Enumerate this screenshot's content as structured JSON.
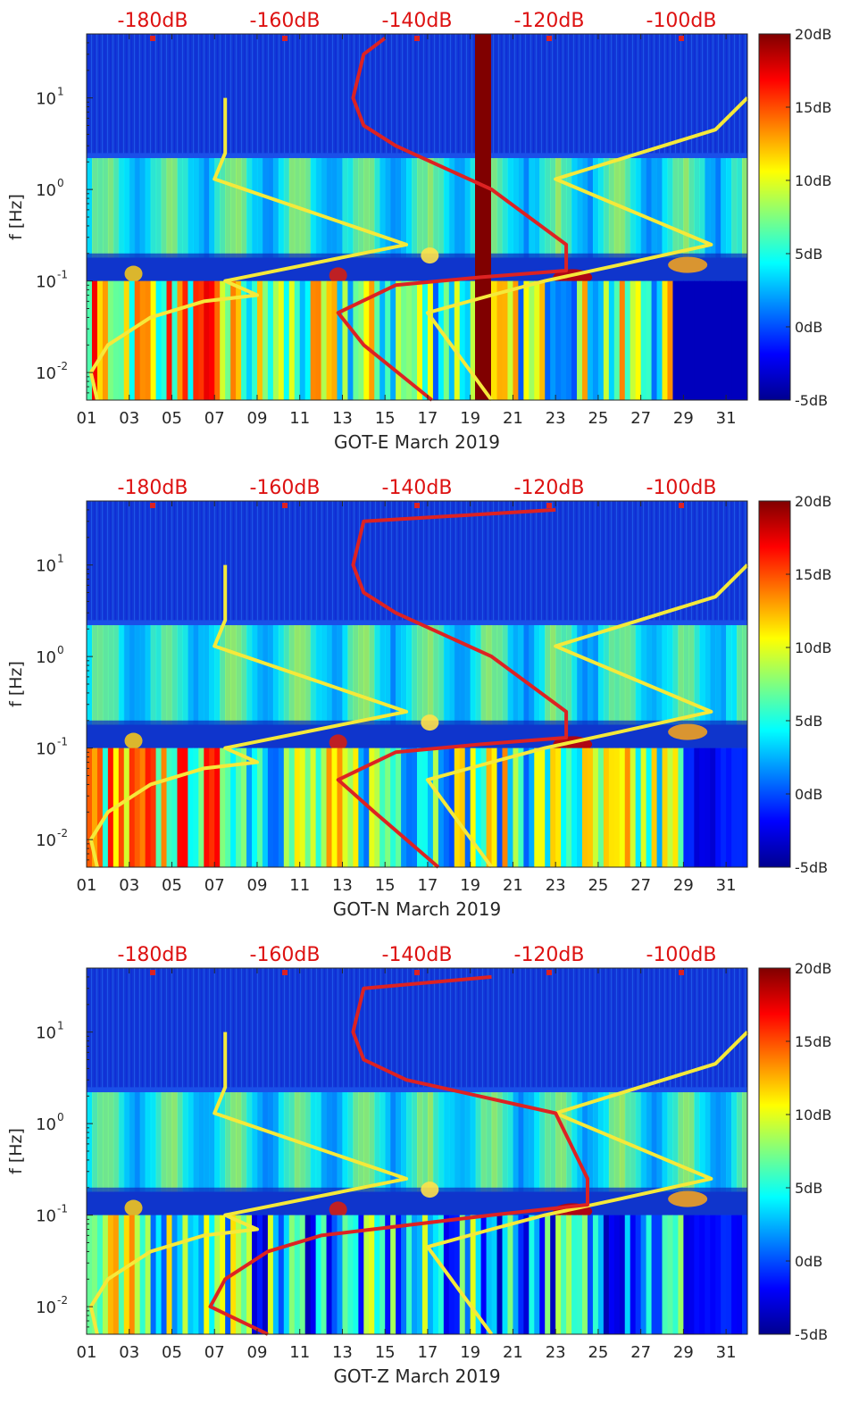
{
  "chart_data": [
    {
      "type": "heatmap",
      "xlabel": "GOT-E March 2019",
      "ylabel": "f [Hz]",
      "x_ticks": [
        "01",
        "03",
        "05",
        "07",
        "09",
        "11",
        "13",
        "15",
        "17",
        "19",
        "21",
        "23",
        "25",
        "27",
        "29",
        "31"
      ],
      "xlim": [
        1,
        32
      ],
      "y_scale": "log",
      "ylim": [
        0.005,
        50
      ],
      "y_ticks": [
        {
          "label": "10",
          "exp": "-2",
          "value": 0.01
        },
        {
          "label": "10",
          "exp": "-1",
          "value": 0.1
        },
        {
          "label": "10",
          "exp": "0",
          "value": 1
        },
        {
          "label": "10",
          "exp": "1",
          "value": 10
        }
      ],
      "top_axis_labels": [
        "-180dB",
        "-160dB",
        "-140dB",
        "-120dB",
        "-100dB"
      ],
      "top_axis_range": [
        -190,
        -90
      ],
      "colorbar": {
        "labels": [
          "20dB",
          "15dB",
          "10dB",
          "5dB",
          "0dB",
          "-5dB"
        ],
        "range": [
          -5,
          20
        ]
      },
      "series": [
        {
          "color": "#f5e93a",
          "points": [
            [
              0.005,
              1.5
            ],
            [
              0.01,
              1.2
            ],
            [
              0.02,
              2.0
            ],
            [
              0.04,
              4.0
            ],
            [
              0.06,
              6.5
            ],
            [
              0.07,
              9.0
            ],
            [
              0.1,
              7.5
            ],
            [
              0.25,
              16
            ],
            [
              1.3,
              7.0
            ],
            [
              2.5,
              7.5
            ],
            [
              10,
              7.5
            ]
          ]
        },
        {
          "color": "#f5e93a",
          "points": [
            [
              0.005,
              20
            ],
            [
              0.045,
              17
            ],
            [
              0.07,
              20
            ],
            [
              0.1,
              22.5
            ],
            [
              0.15,
              26
            ],
            [
              0.25,
              30.3
            ],
            [
              1.3,
              23
            ],
            [
              4.5,
              30.5
            ],
            [
              10,
              32
            ]
          ]
        },
        {
          "color": "#dd2222",
          "points": [
            [
              0.005,
              17.2
            ],
            [
              0.02,
              14
            ],
            [
              0.045,
              12.8
            ],
            [
              0.09,
              15.5
            ],
            [
              0.11,
              19.5
            ],
            [
              0.13,
              23.5
            ],
            [
              0.25,
              23.5
            ],
            [
              1,
              20
            ],
            [
              3,
              15.5
            ],
            [
              5,
              14
            ],
            [
              10,
              13.5
            ],
            [
              30,
              14
            ],
            [
              45,
              15
            ]
          ]
        }
      ],
      "bands": [
        {
          "x": 19.6,
          "color": "#800000"
        }
      ]
    },
    {
      "type": "heatmap",
      "xlabel": "GOT-N March 2019",
      "ylabel": "f [Hz]",
      "x_ticks": [
        "01",
        "03",
        "05",
        "07",
        "09",
        "11",
        "13",
        "15",
        "17",
        "19",
        "21",
        "23",
        "25",
        "27",
        "29",
        "31"
      ],
      "xlim": [
        1,
        32
      ],
      "y_scale": "log",
      "ylim": [
        0.005,
        50
      ],
      "y_ticks": [
        {
          "label": "10",
          "exp": "-2",
          "value": 0.01
        },
        {
          "label": "10",
          "exp": "-1",
          "value": 0.1
        },
        {
          "label": "10",
          "exp": "0",
          "value": 1
        },
        {
          "label": "10",
          "exp": "1",
          "value": 10
        }
      ],
      "top_axis_labels": [
        "-180dB",
        "-160dB",
        "-140dB",
        "-120dB",
        "-100dB"
      ],
      "top_axis_range": [
        -190,
        -90
      ],
      "colorbar": {
        "labels": [
          "20dB",
          "15dB",
          "10dB",
          "5dB",
          "0dB",
          "-5dB"
        ],
        "range": [
          -5,
          20
        ]
      },
      "series": [
        {
          "color": "#f5e93a",
          "points": [
            [
              0.005,
              1.5
            ],
            [
              0.01,
              1.2
            ],
            [
              0.02,
              2.0
            ],
            [
              0.04,
              4.0
            ],
            [
              0.06,
              6.5
            ],
            [
              0.07,
              9.0
            ],
            [
              0.1,
              7.5
            ],
            [
              0.25,
              16
            ],
            [
              1.3,
              7.0
            ],
            [
              2.5,
              7.5
            ],
            [
              10,
              7.5
            ]
          ]
        },
        {
          "color": "#f5e93a",
          "points": [
            [
              0.005,
              20
            ],
            [
              0.045,
              17
            ],
            [
              0.07,
              20
            ],
            [
              0.1,
              22.5
            ],
            [
              0.15,
              26
            ],
            [
              0.25,
              30.3
            ],
            [
              1.3,
              23
            ],
            [
              4.5,
              30.5
            ],
            [
              10,
              32
            ]
          ]
        },
        {
          "color": "#dd2222",
          "points": [
            [
              0.005,
              17.5
            ],
            [
              0.02,
              14.5
            ],
            [
              0.045,
              12.8
            ],
            [
              0.09,
              15.5
            ],
            [
              0.11,
              19.5
            ],
            [
              0.13,
              23.5
            ],
            [
              0.25,
              23.5
            ],
            [
              1,
              20
            ],
            [
              3,
              15.5
            ],
            [
              5,
              14
            ],
            [
              10,
              13.5
            ],
            [
              30,
              14
            ],
            [
              40,
              23
            ]
          ]
        }
      ],
      "bands": []
    },
    {
      "type": "heatmap",
      "xlabel": "GOT-Z March 2019",
      "ylabel": "f [Hz]",
      "x_ticks": [
        "01",
        "03",
        "05",
        "07",
        "09",
        "11",
        "13",
        "15",
        "17",
        "19",
        "21",
        "23",
        "25",
        "27",
        "29",
        "31"
      ],
      "xlim": [
        1,
        32
      ],
      "y_scale": "log",
      "ylim": [
        0.005,
        50
      ],
      "y_ticks": [
        {
          "label": "10",
          "exp": "-2",
          "value": 0.01
        },
        {
          "label": "10",
          "exp": "-1",
          "value": 0.1
        },
        {
          "label": "10",
          "exp": "0",
          "value": 1
        },
        {
          "label": "10",
          "exp": "1",
          "value": 10
        }
      ],
      "top_axis_labels": [
        "-180dB",
        "-160dB",
        "-140dB",
        "-120dB",
        "-100dB"
      ],
      "top_axis_range": [
        -190,
        -90
      ],
      "colorbar": {
        "labels": [
          "20dB",
          "15dB",
          "10dB",
          "5dB",
          "0dB",
          "-5dB"
        ],
        "range": [
          -5,
          20
        ]
      },
      "series": [
        {
          "color": "#f5e93a",
          "points": [
            [
              0.005,
              1.5
            ],
            [
              0.01,
              1.2
            ],
            [
              0.02,
              2.0
            ],
            [
              0.04,
              4.0
            ],
            [
              0.06,
              6.5
            ],
            [
              0.07,
              9.0
            ],
            [
              0.1,
              7.5
            ],
            [
              0.25,
              16
            ],
            [
              1.3,
              7.0
            ],
            [
              2.5,
              7.5
            ],
            [
              10,
              7.5
            ]
          ]
        },
        {
          "color": "#f5e93a",
          "points": [
            [
              0.005,
              20
            ],
            [
              0.045,
              17
            ],
            [
              0.07,
              20
            ],
            [
              0.1,
              22.5
            ],
            [
              0.15,
              26
            ],
            [
              0.25,
              30.3
            ],
            [
              1.3,
              23
            ],
            [
              4.5,
              30.5
            ],
            [
              10,
              32
            ]
          ]
        },
        {
          "color": "#dd2222",
          "points": [
            [
              0.005,
              9.5
            ],
            [
              0.01,
              6.8
            ],
            [
              0.02,
              7.5
            ],
            [
              0.04,
              9.5
            ],
            [
              0.06,
              12
            ],
            [
              0.1,
              20
            ],
            [
              0.13,
              24.5
            ],
            [
              0.25,
              24.5
            ],
            [
              1.3,
              23
            ],
            [
              3,
              16
            ],
            [
              5,
              14
            ],
            [
              10,
              13.5
            ],
            [
              30,
              14
            ],
            [
              40,
              20
            ]
          ]
        }
      ],
      "bands": []
    }
  ]
}
